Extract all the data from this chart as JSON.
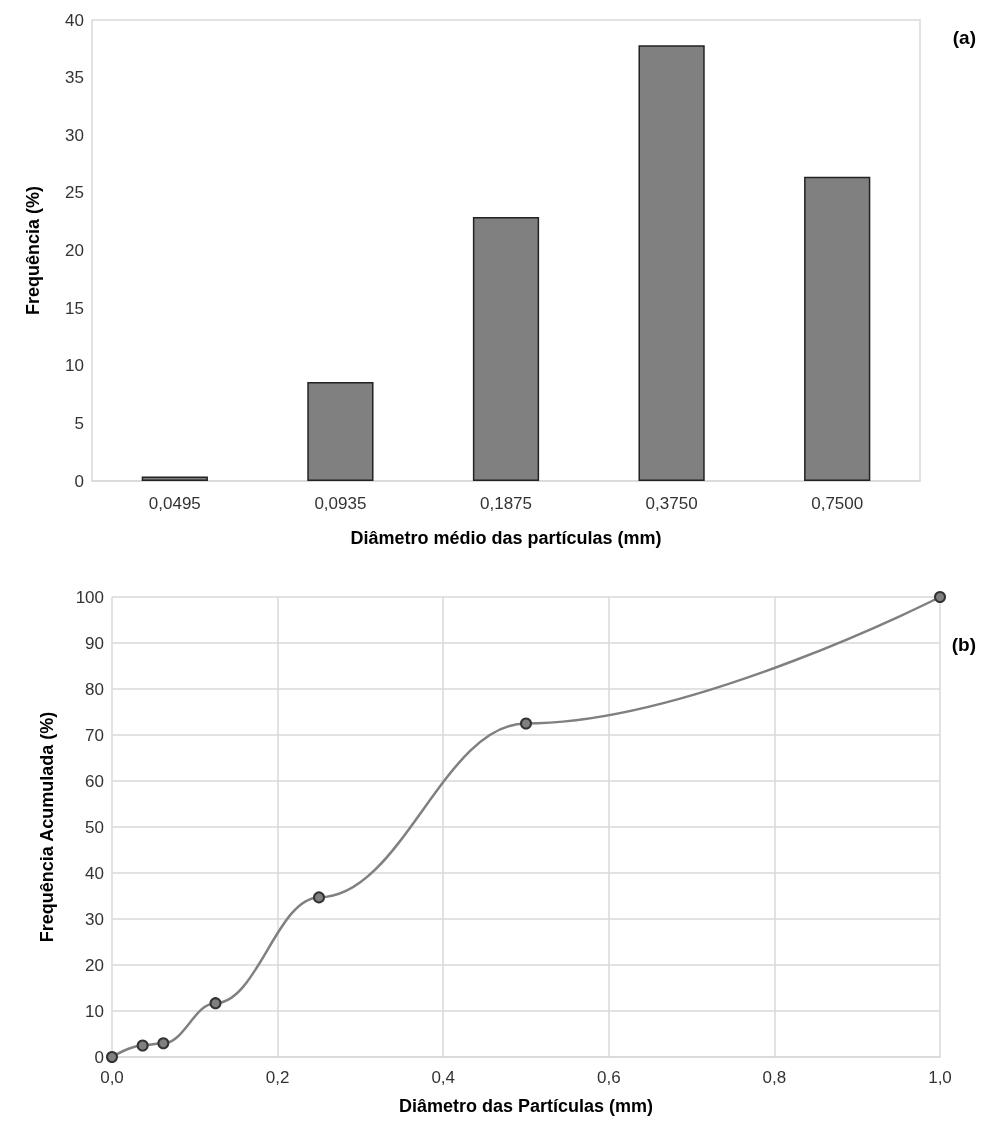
{
  "chart_data": [
    {
      "type": "bar",
      "categories": [
        "0,0495",
        "0,0935",
        "0,1875",
        "0,3750",
        "0,7500"
      ],
      "values": [
        0.4,
        8.6,
        22.9,
        37.8,
        26.4
      ],
      "color": "#808080",
      "ylim": [
        0,
        40
      ],
      "yticks": [
        0,
        5,
        10,
        15,
        20,
        25,
        30,
        35,
        40
      ],
      "grid": false,
      "xlabel": "Diâmetro médio das partículas (mm)",
      "ylabel": "Frequência (%)",
      "annotations": [
        "(a)"
      ]
    },
    {
      "type": "line",
      "x": [
        0,
        0.037,
        0.062,
        0.125,
        0.25,
        0.5,
        1.0
      ],
      "values": [
        0,
        2.5,
        3.0,
        11.7,
        34.7,
        72.5,
        100
      ],
      "color": "#808080",
      "marker": "circle",
      "xlim": [
        0,
        1
      ],
      "xticks": [
        {
          "value": 0,
          "label": "0,0"
        },
        {
          "value": 0.2,
          "label": "0,2"
        },
        {
          "value": 0.4,
          "label": "0,4"
        },
        {
          "value": 0.6,
          "label": "0,6"
        },
        {
          "value": 0.8,
          "label": "0,8"
        },
        {
          "value": 1,
          "label": "1,0"
        }
      ],
      "ylim": [
        0,
        100
      ],
      "yticks": [
        0,
        10,
        20,
        30,
        40,
        50,
        60,
        70,
        80,
        90,
        100
      ],
      "grid": true,
      "xlabel": "Diâmetro das Partículas (mm)",
      "ylabel": "Frequência Acumulada (%)",
      "annotations": [
        "(b)"
      ]
    }
  ]
}
